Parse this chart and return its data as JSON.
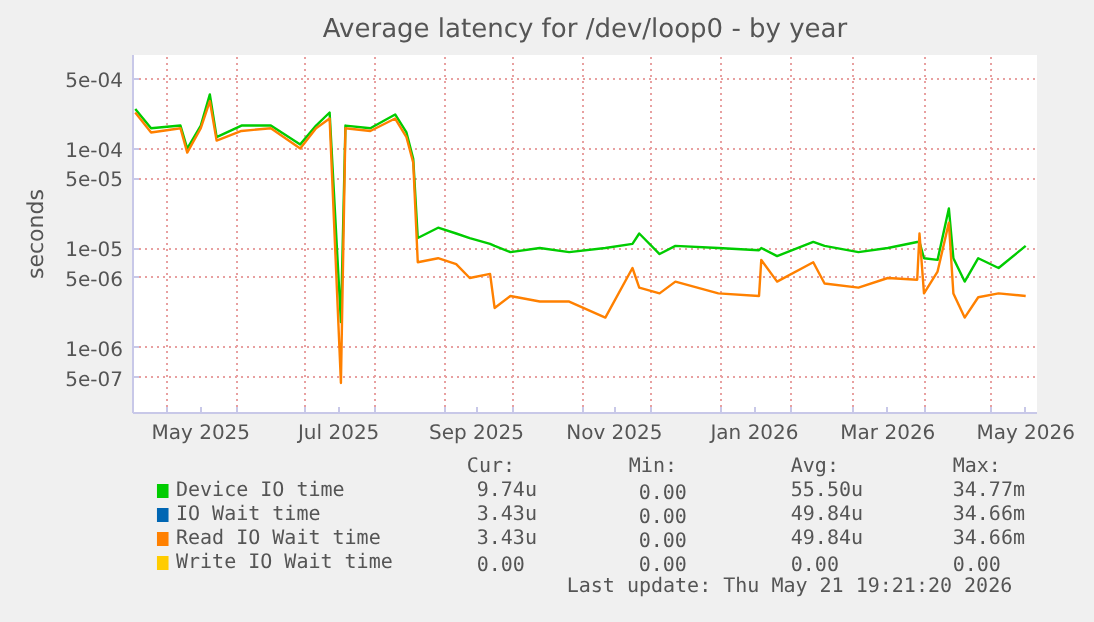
{
  "chart_data": {
    "type": "line",
    "title": "Average latency for /dev/loop0 - by year",
    "ylabel": "seconds",
    "log": true,
    "grid": true,
    "legend": "bottom",
    "x": [
      "2025-04-17",
      "2025-04-24",
      "2025-05-07",
      "2025-05-10",
      "2025-05-16",
      "2025-05-20",
      "2025-05-23",
      "2025-06-03",
      "2025-06-16",
      "2025-06-29",
      "2025-07-06",
      "2025-07-12",
      "2025-07-17",
      "2025-07-19",
      "2025-07-30",
      "2025-08-10",
      "2025-08-15",
      "2025-08-18",
      "2025-08-20",
      "2025-08-29",
      "2025-09-06",
      "2025-09-12",
      "2025-09-21",
      "2025-09-23",
      "2025-09-30",
      "2025-10-13",
      "2025-10-26",
      "2025-11-11",
      "2025-11-23",
      "2025-11-26",
      "2025-12-05",
      "2025-12-12",
      "2025-12-31",
      "2026-01-18",
      "2026-01-19",
      "2026-01-26",
      "2026-02-11",
      "2026-02-16",
      "2026-03-03",
      "2026-03-16",
      "2026-03-29",
      "2026-03-30",
      "2026-04-01",
      "2026-04-07",
      "2026-04-12",
      "2026-04-14",
      "2026-04-19",
      "2026-04-25",
      "2026-05-04",
      "2026-05-16"
    ],
    "xlim": [
      "2025-04-16",
      "2026-05-21"
    ],
    "xticks": [
      {
        "value": "2025-05-01",
        "label": null
      },
      {
        "value": "2025-06-01",
        "label": null
      },
      {
        "value": "2025-07-01",
        "label": null
      },
      {
        "value": "2025-08-01",
        "label": null
      },
      {
        "value": "2025-09-01",
        "label": null
      },
      {
        "value": "2025-10-01",
        "label": null
      },
      {
        "value": "2025-11-01",
        "label": null
      },
      {
        "value": "2025-12-01",
        "label": null
      },
      {
        "value": "2026-01-01",
        "label": null
      },
      {
        "value": "2026-02-01",
        "label": null
      },
      {
        "value": "2026-03-01",
        "label": null
      },
      {
        "value": "2026-04-01",
        "label": null
      },
      {
        "value": "2026-05-01",
        "label": null
      },
      {
        "value": "2025-05-16",
        "label": "May 2025"
      },
      {
        "value": "2025-07-16",
        "label": "Jul 2025"
      },
      {
        "value": "2025-09-15",
        "label": "Sep 2025"
      },
      {
        "value": "2025-11-15",
        "label": "Nov 2025"
      },
      {
        "value": "2026-01-16",
        "label": "Jan 2026"
      },
      {
        "value": "2026-03-16",
        "label": "Mar 2026"
      },
      {
        "value": "2026-05-16",
        "label": "May 2026"
      }
    ],
    "ylim": [
      2.2e-07,
      0.00087
    ],
    "yticks": [
      {
        "value": 0.0005,
        "label": "5e-04"
      },
      {
        "value": 0.0001,
        "label": "1e-04"
      },
      {
        "value": 5e-05,
        "label": "5e-05"
      },
      {
        "value": 1e-05,
        "label": "1e-05"
      },
      {
        "value": 5e-06,
        "label": "5e-06"
      },
      {
        "value": 1e-06,
        "label": "1e-06"
      },
      {
        "value": 5e-07,
        "label": "5e-07"
      }
    ],
    "series": [
      {
        "name": "Device IO time",
        "color": "#00cc00",
        "values": [
          0.00025,
          0.00016,
          0.00017,
          0.0001,
          0.00017,
          0.00035,
          0.00013,
          0.00017,
          0.00017,
          0.00011,
          0.00017,
          0.00023,
          1.8e-06,
          0.00017,
          0.00016,
          0.00022,
          0.000145,
          7.9e-05,
          1.26e-05,
          1.6e-05,
          1.4e-05,
          1.26e-05,
          1.1e-05,
          1.05e-05,
          9.1e-06,
          1e-05,
          9.1e-06,
          1e-05,
          1.1e-05,
          1.4e-05,
          8.7e-06,
          1.05e-05,
          1e-05,
          9.5e-06,
          1e-05,
          8.3e-06,
          1.15e-05,
          1.05e-05,
          9.1e-06,
          1e-05,
          1.15e-05,
          1.15e-05,
          7.9e-06,
          7.6e-06,
          2.5e-05,
          7.9e-06,
          4.6e-06,
          7.9e-06,
          6.3e-06,
          1.05e-05
        ]
      },
      {
        "name": "IO Wait time",
        "color": "#0066b3",
        "values": [
          null,
          null,
          null,
          null,
          null,
          null,
          null,
          null,
          null,
          null,
          null,
          null,
          null,
          null,
          null,
          null,
          null,
          null,
          null,
          null,
          null,
          null,
          null,
          null,
          null,
          null,
          null,
          null,
          null,
          null,
          null,
          null,
          null,
          null,
          null,
          null,
          null,
          null,
          null,
          null,
          null,
          null,
          null,
          null,
          null,
          null,
          null,
          null,
          null,
          null
        ]
      },
      {
        "name": "Read IO Wait time",
        "color": "#ff8000",
        "values": [
          0.00023,
          0.000145,
          0.00016,
          9.1e-05,
          0.00016,
          0.0003,
          0.00012,
          0.00015,
          0.00016,
          0.0001,
          0.00016,
          0.0002,
          4.4e-07,
          0.00016,
          0.00015,
          0.0002,
          0.00013,
          7.2e-05,
          7.2e-06,
          7.9e-06,
          6.9e-06,
          5e-06,
          5.5e-06,
          2.5e-06,
          3.3e-06,
          2.9e-06,
          2.9e-06,
          2e-06,
          6.3e-06,
          4e-06,
          3.5e-06,
          4.6e-06,
          3.5e-06,
          3.3e-06,
          7.6e-06,
          4.6e-06,
          7.2e-06,
          4.4e-06,
          4e-06,
          5e-06,
          4.8e-06,
          1.4e-05,
          3.5e-06,
          5.8e-06,
          1.8e-05,
          3.5e-06,
          2e-06,
          3.2e-06,
          3.5e-06,
          3.3e-06
        ]
      },
      {
        "name": "Write IO Wait time",
        "color": "#ffcc00",
        "values": [
          null,
          null,
          null,
          null,
          null,
          null,
          null,
          null,
          null,
          null,
          null,
          null,
          null,
          null,
          null,
          null,
          null,
          null,
          null,
          null,
          null,
          null,
          null,
          null,
          null,
          null,
          null,
          null,
          null,
          null,
          null,
          null,
          null,
          null,
          null,
          null,
          null,
          null,
          null,
          null,
          null,
          null,
          null,
          null,
          null,
          null,
          null,
          null,
          null,
          null
        ]
      }
    ],
    "annotations": [
      "Cur:",
      "Min:",
      "Avg:",
      "Max:",
      "9.74u",
      "0.00",
      "55.50u",
      "34.77m",
      "3.43u",
      "0.00",
      "49.84u",
      "34.66m",
      "3.43u",
      "0.00",
      "49.84u",
      "34.66m",
      "0.00",
      "0.00",
      "0.00",
      "0.00",
      "Last update: Thu May 21 19:21:20 2026"
    ]
  }
}
